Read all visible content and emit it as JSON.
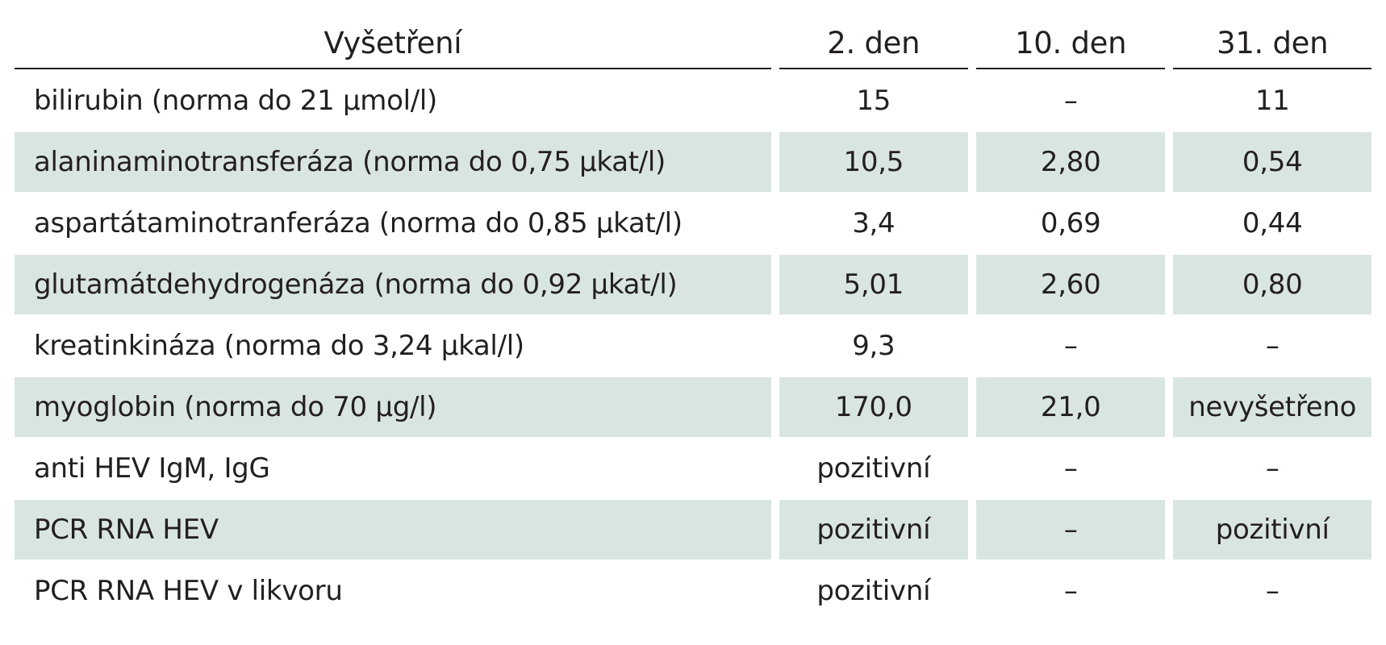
{
  "table": {
    "headers": [
      "Vyšetření",
      "2. den",
      "10. den",
      "31. den"
    ],
    "rows": [
      [
        "bilirubin (norma do 21 µmol/l)",
        "15",
        "–",
        "11"
      ],
      [
        "alaninaminotransferáza  (norma do 0,75 µkat/l)",
        "10,5",
        "2,80",
        "0,54"
      ],
      [
        "aspartátaminotranferáza (norma do 0,85 µkat/l)",
        "3,4",
        "0,69",
        "0,44"
      ],
      [
        "glutamátdehydrogenáza (norma do 0,92 µkat/l)",
        "5,01",
        "2,60",
        "0,80"
      ],
      [
        "kreatinkináza (norma do 3,24 µkal/l)",
        "9,3",
        "–",
        "–"
      ],
      [
        "myoglobin (norma do 70 µg/l)",
        "170,0",
        "21,0",
        "nevyšetřeno"
      ],
      [
        "anti HEV IgM, IgG",
        "pozitivní",
        "–",
        "–"
      ],
      [
        "PCR RNA HEV",
        "pozitivní",
        "–",
        "pozitivní"
      ],
      [
        "PCR RNA HEV v likvoru",
        "pozitivní",
        "–",
        "–"
      ]
    ],
    "shaded_color": "#d9e5e2"
  }
}
